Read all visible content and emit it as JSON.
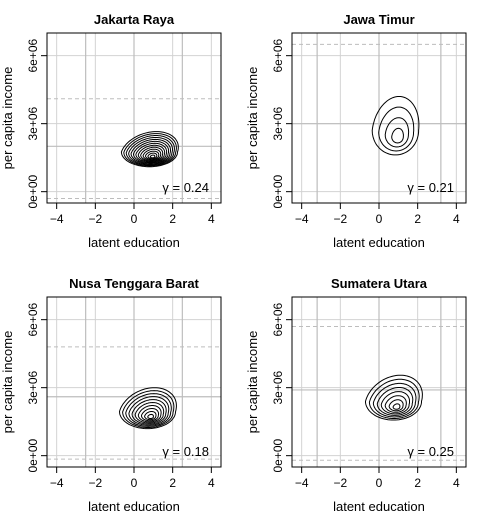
{
  "chart_data": [
    {
      "type": "contour",
      "title": "Jakarta Raya",
      "xlabel": "latent education",
      "ylabel": "per capita income",
      "xlim": [
        -4.5,
        4.5
      ],
      "ylim": [
        -500000,
        7000000
      ],
      "xticks": [
        "−4",
        "−2",
        "0",
        "2",
        "4"
      ],
      "yticks": [
        "0e+00",
        "3e+06",
        "6e+06"
      ],
      "grid": true,
      "gamma_label": "γ = 0.24",
      "gamma": 0.24,
      "solid_h": [
        -2.5,
        0,
        2.5
      ],
      "solid_v": 2000000,
      "dashed_v": [
        4100000,
        -300000
      ],
      "contour": {
        "cx": 0.8,
        "cy": 1750000,
        "sx": 1.45,
        "sy": 900000,
        "top_shift": 0.55,
        "levels": 13,
        "min_frac": 0.08
      }
    },
    {
      "type": "contour",
      "title": "Jawa Timur",
      "xlabel": "latent education",
      "ylabel": "per capita income",
      "xlim": [
        -4.5,
        4.5
      ],
      "ylim": [
        -500000,
        7000000
      ],
      "xticks": [
        "−4",
        "−2",
        "0",
        "2",
        "4"
      ],
      "yticks": [
        "0e+00",
        "3e+06",
        "6e+06"
      ],
      "grid": true,
      "gamma_label": "γ = 0.21",
      "gamma": 0.21,
      "solid_h": [
        -3.2,
        0,
        3.2
      ],
      "solid_v": 3000000,
      "dashed_v": [
        6500000,
        -500000
      ],
      "contour": {
        "cx": 0.85,
        "cy": 2700000,
        "sx": 1.2,
        "sy": 1500000,
        "top_shift": 0.35,
        "levels": 4,
        "min_frac": 0.25
      }
    },
    {
      "type": "contour",
      "title": "Nusa Tenggara Barat",
      "xlabel": "latent education",
      "ylabel": "per capita income",
      "xlim": [
        -4.5,
        4.5
      ],
      "ylim": [
        -500000,
        7000000
      ],
      "xticks": [
        "−4",
        "−2",
        "0",
        "2",
        "4"
      ],
      "yticks": [
        "0e+00",
        "3e+06",
        "6e+06"
      ],
      "grid": true,
      "gamma_label": "γ = 0.18",
      "gamma": 0.18,
      "solid_h": [
        -2.5,
        0,
        2.5
      ],
      "solid_v": 2600000,
      "dashed_v": [
        4800000,
        -150000
      ],
      "contour": {
        "cx": 0.7,
        "cy": 1950000,
        "sx": 1.45,
        "sy": 1050000,
        "top_shift": 0.55,
        "levels": 10,
        "min_frac": 0.1
      }
    },
    {
      "type": "contour",
      "title": "Sumatera Utara",
      "xlabel": "latent education",
      "ylabel": "per capita income",
      "xlim": [
        -4.5,
        4.5
      ],
      "ylim": [
        -500000,
        7000000
      ],
      "xticks": [
        "−4",
        "−2",
        "0",
        "2",
        "4"
      ],
      "yticks": [
        "0e+00",
        "3e+06",
        "6e+06"
      ],
      "grid": true,
      "gamma_label": "γ = 0.25",
      "gamma": 0.25,
      "solid_h": [
        -3.2,
        0,
        3.2
      ],
      "solid_v": 2900000,
      "dashed_v": [
        5700000,
        -200000
      ],
      "contour": {
        "cx": 0.75,
        "cy": 2400000,
        "sx": 1.45,
        "sy": 1150000,
        "top_shift": 0.55,
        "levels": 8,
        "min_frac": 0.12
      }
    }
  ]
}
